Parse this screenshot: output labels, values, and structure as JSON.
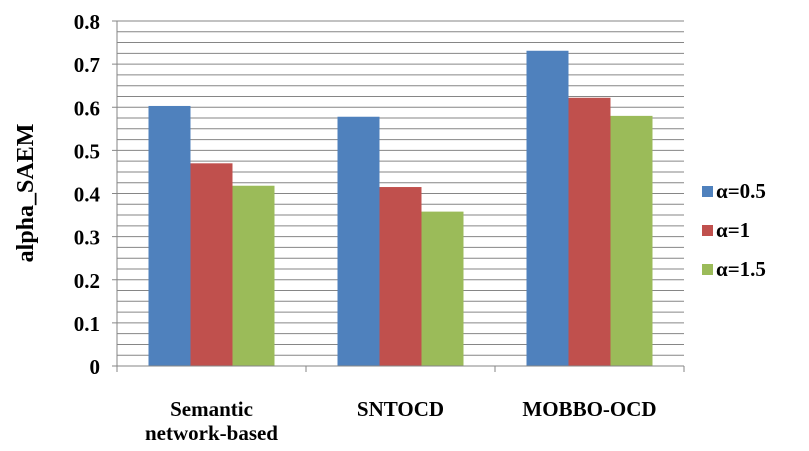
{
  "chart_data": {
    "type": "bar",
    "title": "",
    "xlabel": "",
    "ylabel": "alpha_SAEM",
    "categories": [
      [
        "Semantic",
        "network-based"
      ],
      [
        "SNTOCD"
      ],
      [
        "MOBBO-OCD"
      ]
    ],
    "series": [
      {
        "name": "α=0.5",
        "color": "#4F81BD",
        "values": [
          0.603,
          0.578,
          0.731
        ]
      },
      {
        "name": "α=1",
        "color": "#C0504D",
        "values": [
          0.47,
          0.415,
          0.622
        ]
      },
      {
        "name": "α=1.5",
        "color": "#9BBB59",
        "values": [
          0.418,
          0.358,
          0.58
        ]
      }
    ],
    "ylim": [
      0,
      0.8
    ],
    "ytick_labels": [
      "0",
      "0.1",
      "0.2",
      "0.3",
      "0.4",
      "0.5",
      "0.6",
      "0.7",
      "0.8"
    ],
    "gridlines": true,
    "legend_position": "right"
  }
}
